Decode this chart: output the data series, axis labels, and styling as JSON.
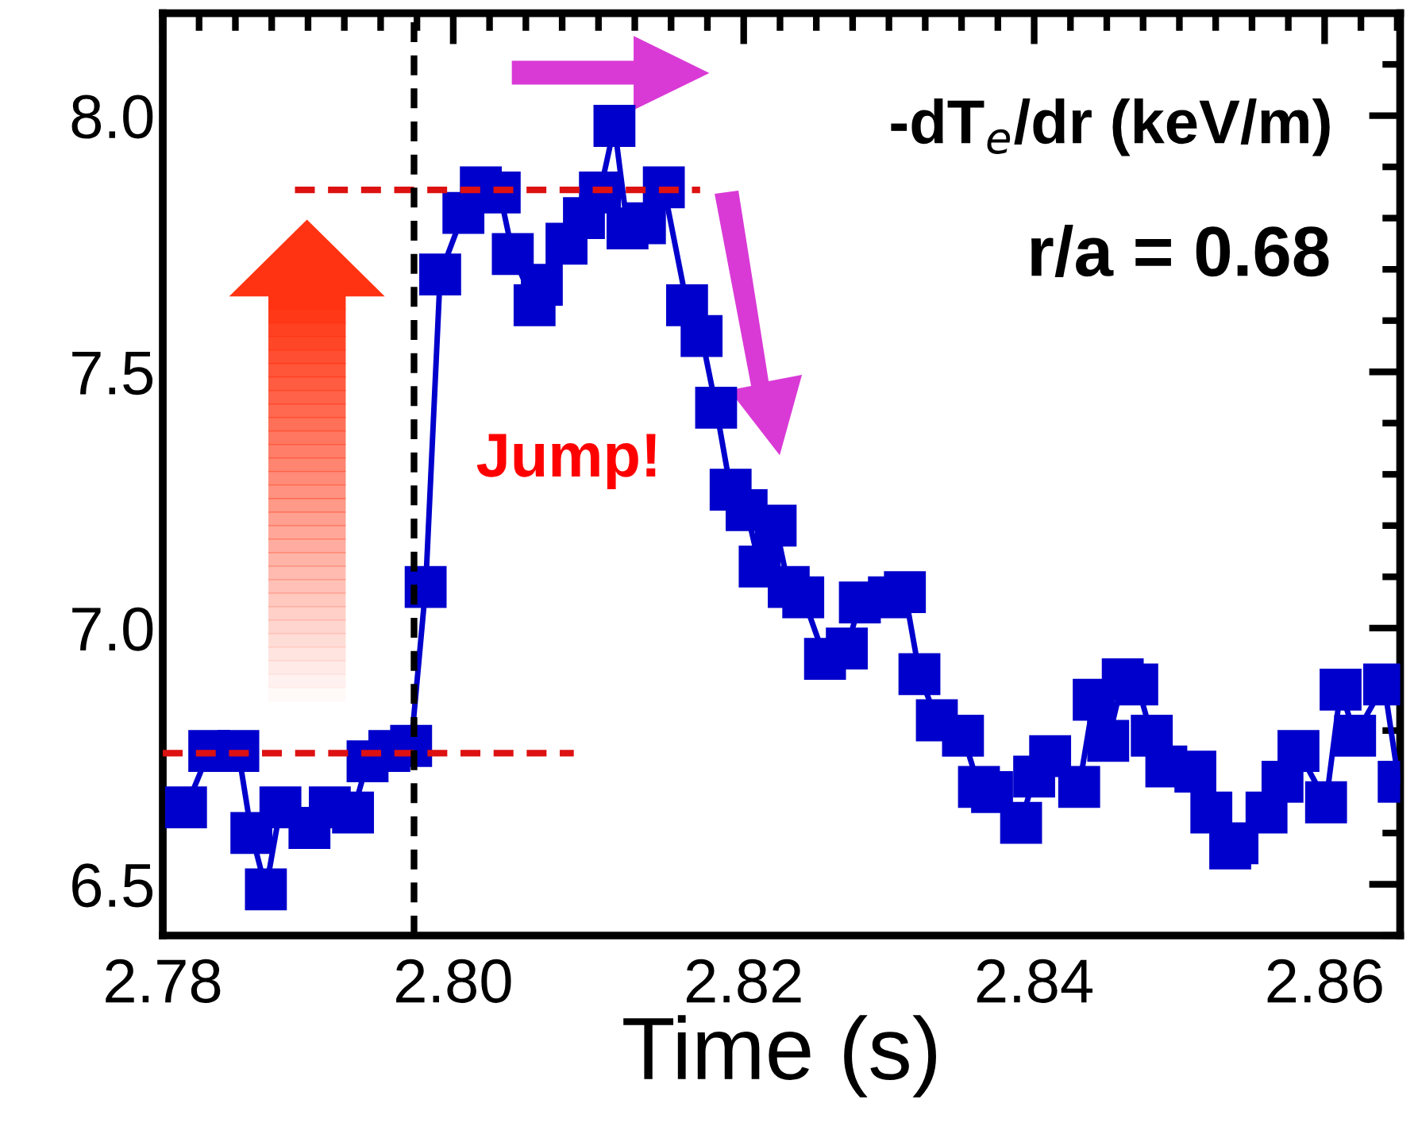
{
  "chart_data": {
    "type": "line",
    "xlabel": "Time (s)",
    "xlim": [
      2.78,
      2.8652
    ],
    "ylim": [
      6.4,
      8.2
    ],
    "xticks": [
      2.78,
      "2.80",
      2.82,
      2.84,
      2.86
    ],
    "yticks": [
      6.5,
      "7.0",
      7.5,
      "8.0"
    ],
    "grid": false,
    "legend": false,
    "series": [
      {
        "color": "#0000cc",
        "marker": "square",
        "line_style": "solid",
        "x": [
          2.7816,
          2.7832,
          2.7852,
          2.7861,
          2.7871,
          2.7881,
          2.7901,
          2.7915,
          2.7931,
          2.7941,
          2.7956,
          2.7971,
          2.7981,
          2.7991,
          2.8007,
          2.8019,
          2.8032,
          2.8041,
          2.8056,
          2.8061,
          2.8078,
          2.809,
          2.8101,
          2.8111,
          2.812,
          2.8132,
          2.8145,
          2.8161,
          2.8171,
          2.8181,
          2.8191,
          2.8202,
          2.8211,
          2.8222,
          2.8231,
          2.8241,
          2.8256,
          2.8271,
          2.828,
          2.83,
          2.8311,
          2.8321,
          2.8333,
          2.8351,
          2.8362,
          2.8371,
          2.8391,
          2.84,
          2.8411,
          2.8431,
          2.8441,
          2.8451,
          2.8461,
          2.8471,
          2.8481,
          2.8491,
          2.8511,
          2.8522,
          2.8535,
          2.854,
          2.856,
          2.8571,
          2.8582,
          2.8601,
          2.8611,
          2.8621,
          2.8641,
          2.8651
        ],
        "values": [
          6.65,
          6.76,
          6.76,
          6.6,
          6.49,
          6.65,
          6.61,
          6.65,
          6.64,
          6.74,
          6.76,
          6.77,
          7.08,
          7.69,
          7.81,
          7.86,
          7.85,
          7.73,
          7.63,
          7.67,
          7.75,
          7.8,
          7.85,
          7.98,
          7.78,
          7.79,
          7.86,
          7.63,
          7.57,
          7.43,
          7.27,
          7.23,
          7.12,
          7.2,
          7.08,
          7.06,
          6.94,
          6.96,
          7.05,
          7.06,
          7.07,
          6.91,
          6.82,
          6.79,
          6.69,
          6.68,
          6.62,
          6.71,
          6.75,
          6.69,
          6.86,
          6.78,
          6.9,
          6.89,
          6.79,
          6.73,
          6.72,
          6.64,
          6.57,
          6.58,
          6.64,
          6.7,
          6.76,
          6.66,
          6.88,
          6.79,
          6.89,
          6.7
        ]
      },
      {
        "color": "#dd1111",
        "marker": "none",
        "line_style": "dashed",
        "x": [
          2.7891,
          2.817
        ],
        "values": [
          7.855,
          7.855
        ]
      },
      {
        "color": "#dd1111",
        "marker": "none",
        "line_style": "dashed",
        "x": [
          2.78,
          2.8083
        ],
        "values": [
          6.756,
          6.756
        ]
      }
    ],
    "ref_lines": [
      {
        "axis": "x",
        "value": 2.7973,
        "color": "#000000",
        "line_style": "dashed"
      }
    ],
    "annotations": [
      "-dT$_{e}$/dr (keV/m)",
      "r/a = 0.68",
      "Jump!"
    ]
  }
}
